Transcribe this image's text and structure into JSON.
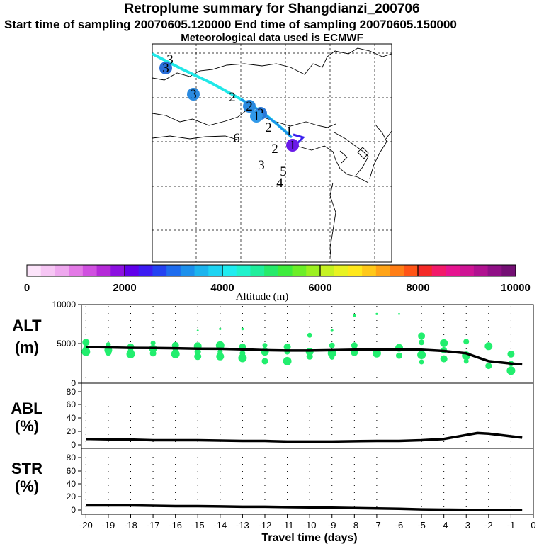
{
  "header": {
    "title": "Retroplume summary for Shangdianzi_200706",
    "sampling": "Start time of sampling 20070605.120000     End time of sampling 20070605.150000",
    "met": "Meteorological data used is ECMWF"
  },
  "colorbar": {
    "label": "Altitude (m)",
    "ticks": [
      "0",
      "2000",
      "4000",
      "6000",
      "8000",
      "10000"
    ],
    "colors": [
      "#fce4fa",
      "#f6c6f4",
      "#eea8ee",
      "#e37ae6",
      "#d050e0",
      "#b52ad8",
      "#8c10e0",
      "#6000ea",
      "#3d1cf2",
      "#2342f2",
      "#1e6cee",
      "#1c90ec",
      "#1cb4ee",
      "#1ed4f2",
      "#20ecf0",
      "#20f2cc",
      "#20ee9c",
      "#26ea6a",
      "#3eec3c",
      "#6cee28",
      "#9cf020",
      "#c6f222",
      "#e8f222",
      "#ffe81c",
      "#ffc81a",
      "#ffa418",
      "#ff7e16",
      "#ff5416",
      "#f42a28",
      "#f21a6a",
      "#e61490",
      "#ce1494",
      "#b01290",
      "#901086",
      "#741074"
    ]
  },
  "map": {
    "markers": [
      {
        "label": "3",
        "kind": "text"
      },
      {
        "label": "3",
        "kind": "dot",
        "color": "#2a6fd8"
      },
      {
        "label": "3",
        "kind": "dot",
        "color": "#2a8ae0"
      },
      {
        "label": "2",
        "kind": "text"
      },
      {
        "label": "2",
        "kind": "dot",
        "color": "#2a8ae0"
      },
      {
        "label": "2",
        "kind": "dot",
        "color": "#2a7ad8"
      },
      {
        "label": "1",
        "kind": "dot",
        "color": "#3098e8"
      },
      {
        "label": "2",
        "kind": "text"
      },
      {
        "label": "1",
        "kind": "text"
      },
      {
        "label": "6",
        "kind": "text"
      },
      {
        "label": "2",
        "kind": "text"
      },
      {
        "label": "3",
        "kind": "text"
      },
      {
        "label": "5",
        "kind": "text"
      },
      {
        "label": "4",
        "kind": "text"
      },
      {
        "label": "1",
        "kind": "dot",
        "color": "#6a1ae8"
      }
    ]
  },
  "chart_data": [
    {
      "type": "line",
      "panel": "ALT",
      "ylabel": "ALT\n(m)",
      "ylim": [
        0,
        10000
      ],
      "yticks": [
        "10000",
        "5000",
        "0"
      ],
      "x": [
        -20,
        -19,
        -18,
        -17,
        -16,
        -15,
        -14,
        -13,
        -12,
        -11,
        -10,
        -9,
        -8,
        -7,
        -6,
        -5,
        -4,
        -3,
        -2,
        -1,
        -0.5
      ],
      "series": [
        {
          "name": "mean altitude",
          "color": "#000000",
          "values": [
            4600,
            4550,
            4500,
            4480,
            4450,
            4400,
            4380,
            4300,
            4200,
            4150,
            4150,
            4200,
            4250,
            4250,
            4250,
            4250,
            4100,
            3800,
            2800,
            2500,
            2400
          ]
        }
      ],
      "points": [
        {
          "x": -20,
          "y": 5200
        },
        {
          "x": -20,
          "y": 4400
        },
        {
          "x": -20,
          "y": 4000
        },
        {
          "x": -19,
          "y": 4900
        },
        {
          "x": -19,
          "y": 4200
        },
        {
          "x": -19,
          "y": 3900
        },
        {
          "x": -18,
          "y": 4600
        },
        {
          "x": -18,
          "y": 4100
        },
        {
          "x": -18,
          "y": 3700
        },
        {
          "x": -17,
          "y": 5100
        },
        {
          "x": -17,
          "y": 4400
        },
        {
          "x": -17,
          "y": 3800
        },
        {
          "x": -16,
          "y": 4800
        },
        {
          "x": -16,
          "y": 4300
        },
        {
          "x": -16,
          "y": 3700
        },
        {
          "x": -15,
          "y": 6700
        },
        {
          "x": -15,
          "y": 4700
        },
        {
          "x": -15,
          "y": 4000
        },
        {
          "x": -15,
          "y": 3400
        },
        {
          "x": -14,
          "y": 6900
        },
        {
          "x": -14,
          "y": 4800
        },
        {
          "x": -14,
          "y": 4000
        },
        {
          "x": -14,
          "y": 3400
        },
        {
          "x": -13,
          "y": 6900
        },
        {
          "x": -13,
          "y": 4600
        },
        {
          "x": -13,
          "y": 3800
        },
        {
          "x": -13,
          "y": 3200
        },
        {
          "x": -12,
          "y": 4800
        },
        {
          "x": -12,
          "y": 4000
        },
        {
          "x": -12,
          "y": 2800
        },
        {
          "x": -11,
          "y": 4600
        },
        {
          "x": -11,
          "y": 4000
        },
        {
          "x": -11,
          "y": 2800
        },
        {
          "x": -10,
          "y": 6100
        },
        {
          "x": -10,
          "y": 4000
        },
        {
          "x": -10,
          "y": 3400
        },
        {
          "x": -9,
          "y": 6700
        },
        {
          "x": -9,
          "y": 4800
        },
        {
          "x": -9,
          "y": 3800
        },
        {
          "x": -9,
          "y": 3300
        },
        {
          "x": -8,
          "y": 8600
        },
        {
          "x": -8,
          "y": 4800
        },
        {
          "x": -8,
          "y": 3900
        },
        {
          "x": -7,
          "y": 8800
        },
        {
          "x": -7,
          "y": 3800
        },
        {
          "x": -6,
          "y": 8800
        },
        {
          "x": -6,
          "y": 4500
        },
        {
          "x": -6,
          "y": 3500
        },
        {
          "x": -5,
          "y": 6000
        },
        {
          "x": -5,
          "y": 5200
        },
        {
          "x": -5,
          "y": 3600
        },
        {
          "x": -5,
          "y": 2700
        },
        {
          "x": -4,
          "y": 5100
        },
        {
          "x": -4,
          "y": 4200
        },
        {
          "x": -4,
          "y": 3100
        },
        {
          "x": -3,
          "y": 5300
        },
        {
          "x": -3,
          "y": 3500
        },
        {
          "x": -3,
          "y": 2800
        },
        {
          "x": -2,
          "y": 4700
        },
        {
          "x": -2,
          "y": 2200
        },
        {
          "x": -1,
          "y": 3700
        },
        {
          "x": -1,
          "y": 2500
        },
        {
          "x": -1,
          "y": 1600
        }
      ]
    },
    {
      "type": "line",
      "panel": "ABL",
      "ylabel": "ABL\n(%)",
      "ylim": [
        0,
        90
      ],
      "yticks": [
        "80",
        "60",
        "40",
        "20",
        "0"
      ],
      "x": [
        -20,
        -19,
        -18,
        -17,
        -16,
        -15,
        -14,
        -13,
        -12,
        -11,
        -10,
        -9,
        -8,
        -7,
        -6,
        -5,
        -4,
        -3,
        -2.5,
        -2,
        -1,
        -0.5
      ],
      "series": [
        {
          "name": "ABL fraction",
          "color": "#000000",
          "values": [
            9,
            8.5,
            8,
            7,
            7,
            7,
            6.5,
            6,
            6,
            5,
            5,
            5,
            5.5,
            6,
            6,
            7,
            9,
            15,
            18,
            17,
            13,
            11
          ]
        }
      ]
    },
    {
      "type": "line",
      "panel": "STR",
      "ylabel": "STR\n(%)",
      "ylim": [
        0,
        90
      ],
      "yticks": [
        "80",
        "60",
        "40",
        "20",
        "0"
      ],
      "xlabel": "Travel time (days)",
      "xticks": [
        "-20",
        "-19",
        "-18",
        "-17",
        "-16",
        "-15",
        "-14",
        "-13",
        "-12",
        "-11",
        "-10",
        "-9",
        "-8",
        "-7",
        "-6",
        "-5",
        "-4",
        "-3",
        "-2",
        "-1",
        "0"
      ],
      "x": [
        -20,
        -19,
        -18,
        -17,
        -16,
        -15,
        -14,
        -13,
        -12,
        -11,
        -10,
        -9,
        -8,
        -7,
        -6,
        -5,
        -4,
        -3,
        -2,
        -1,
        -0.5
      ],
      "series": [
        {
          "name": "stratospheric fraction",
          "color": "#000000",
          "values": [
            7,
            7,
            7,
            6.5,
            6,
            6,
            5.5,
            5,
            5,
            4.5,
            4,
            3.5,
            3,
            2.5,
            2,
            1,
            0.5,
            0.3,
            0.2,
            0.1,
            0.1
          ]
        }
      ]
    }
  ]
}
